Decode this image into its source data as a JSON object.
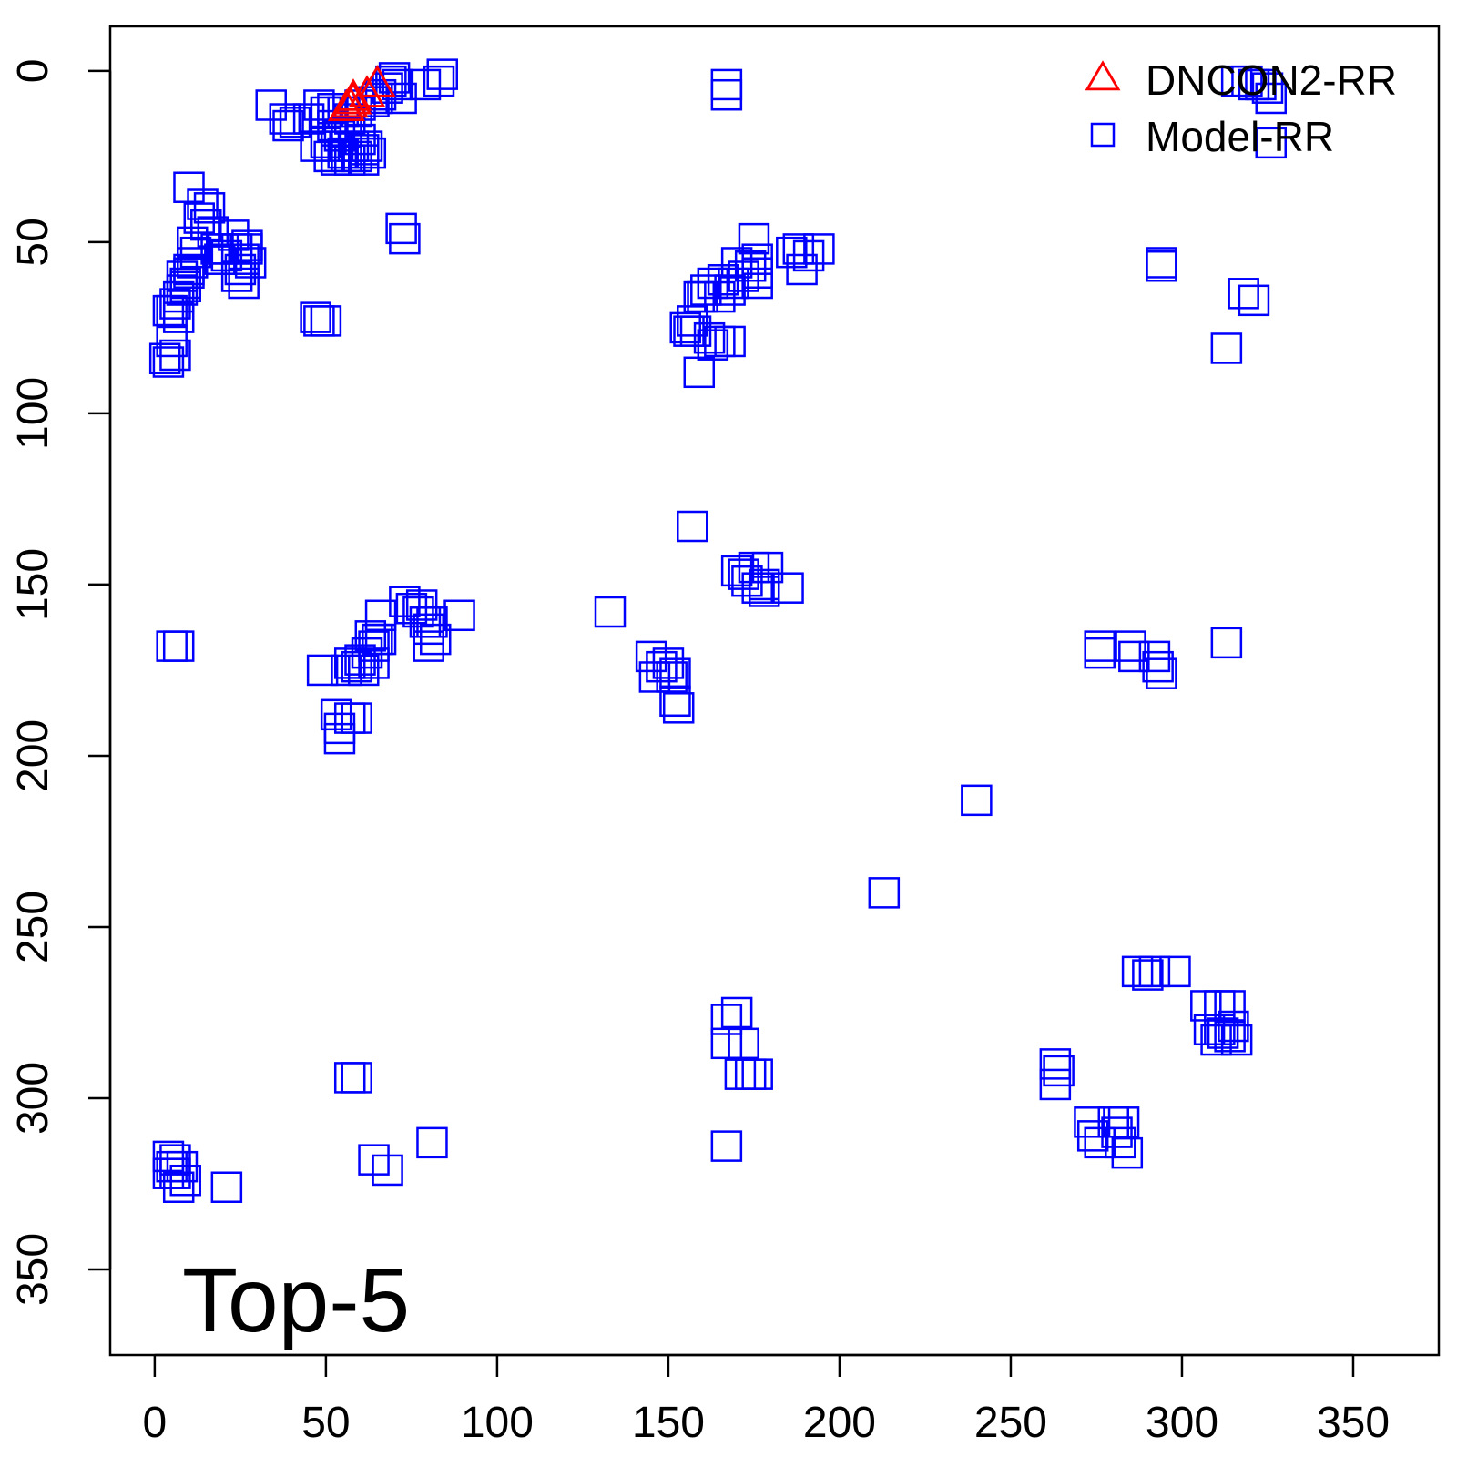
{
  "chart_data": {
    "type": "scatter",
    "title": "",
    "xlabel": "",
    "ylabel": "",
    "annotation": "Top-5",
    "xlim": [
      -13,
      375
    ],
    "ylim": [
      -13,
      375
    ],
    "y_inverted": true,
    "x_ticks": [
      "0",
      "50",
      "100",
      "150",
      "200",
      "250",
      "300",
      "350"
    ],
    "y_ticks": [
      "0",
      "50",
      "100",
      "150",
      "200",
      "250",
      "300",
      "350"
    ],
    "legend_position": "top-right",
    "colors": {
      "DNCON2-RR": "#ff0000",
      "Model-RR": "#0000ff"
    },
    "series": [
      {
        "name": "DNCON2-RR",
        "marker": "triangle",
        "points": [
          [
            56,
            11
          ],
          [
            57,
            10
          ],
          [
            58,
            9
          ],
          [
            58,
            8
          ],
          [
            62,
            7
          ],
          [
            65,
            4
          ]
        ]
      },
      {
        "name": "Model-RR",
        "marker": "square",
        "points": [
          [
            34,
            10
          ],
          [
            38,
            14
          ],
          [
            39,
            16
          ],
          [
            41,
            15
          ],
          [
            45,
            14
          ],
          [
            47,
            22
          ],
          [
            48,
            10
          ],
          [
            50,
            12
          ],
          [
            50,
            21
          ],
          [
            51,
            25
          ],
          [
            52,
            16
          ],
          [
            52,
            11
          ],
          [
            53,
            22
          ],
          [
            53,
            26
          ],
          [
            54,
            19
          ],
          [
            55,
            12
          ],
          [
            55,
            24
          ],
          [
            56,
            18
          ],
          [
            56,
            25
          ],
          [
            57,
            14
          ],
          [
            57,
            26
          ],
          [
            58,
            22
          ],
          [
            59,
            12
          ],
          [
            59,
            25
          ],
          [
            60,
            10
          ],
          [
            60,
            20
          ],
          [
            61,
            23
          ],
          [
            61,
            26
          ],
          [
            62,
            22
          ],
          [
            63,
            24
          ],
          [
            64,
            9
          ],
          [
            65,
            8
          ],
          [
            66,
            7
          ],
          [
            68,
            5
          ],
          [
            69,
            3
          ],
          [
            70,
            2
          ],
          [
            71,
            4
          ],
          [
            72,
            8
          ],
          [
            79,
            4
          ],
          [
            83,
            3
          ],
          [
            84,
            1
          ],
          [
            167,
            4
          ],
          [
            167,
            7
          ],
          [
            316,
            3
          ],
          [
            319,
            3
          ],
          [
            321,
            4
          ],
          [
            323,
            4
          ],
          [
            325,
            5
          ],
          [
            326,
            8
          ],
          [
            326,
            21
          ],
          [
            10,
            34
          ],
          [
            11,
            50
          ],
          [
            13,
            43
          ],
          [
            14,
            39
          ],
          [
            15,
            45
          ],
          [
            16,
            40
          ],
          [
            17,
            47
          ],
          [
            18,
            52
          ],
          [
            19,
            55
          ],
          [
            20,
            52
          ],
          [
            21,
            54
          ],
          [
            23,
            48
          ],
          [
            24,
            52
          ],
          [
            25,
            58
          ],
          [
            26,
            55
          ],
          [
            27,
            51
          ],
          [
            28,
            56
          ],
          [
            24,
            60
          ],
          [
            26,
            62
          ],
          [
            27,
            52
          ],
          [
            12,
            53
          ],
          [
            11,
            56
          ],
          [
            10,
            59
          ],
          [
            9,
            62
          ],
          [
            8,
            64
          ],
          [
            7,
            66
          ],
          [
            6,
            68
          ],
          [
            5,
            70
          ],
          [
            4,
            70
          ],
          [
            7,
            72
          ],
          [
            5,
            79
          ],
          [
            3,
            84
          ],
          [
            4,
            85
          ],
          [
            6,
            83
          ],
          [
            8,
            60
          ],
          [
            10,
            58
          ],
          [
            9,
            63
          ],
          [
            72,
            46
          ],
          [
            73,
            49
          ],
          [
            47,
            72
          ],
          [
            48,
            73
          ],
          [
            50,
            73
          ],
          [
            175,
            49
          ],
          [
            176,
            55
          ],
          [
            176,
            59
          ],
          [
            176,
            62
          ],
          [
            174,
            57
          ],
          [
            172,
            60
          ],
          [
            170,
            56
          ],
          [
            169,
            62
          ],
          [
            168,
            64
          ],
          [
            166,
            61
          ],
          [
            165,
            66
          ],
          [
            163,
            62
          ],
          [
            161,
            64
          ],
          [
            160,
            66
          ],
          [
            159,
            66
          ],
          [
            158,
            76
          ],
          [
            157,
            73
          ],
          [
            156,
            76
          ],
          [
            155,
            75
          ],
          [
            162,
            78
          ],
          [
            163,
            80
          ],
          [
            165,
            79
          ],
          [
            168,
            79
          ],
          [
            159,
            88
          ],
          [
            186,
            53
          ],
          [
            188,
            52
          ],
          [
            189,
            58
          ],
          [
            191,
            54
          ],
          [
            194,
            52
          ],
          [
            294,
            56
          ],
          [
            294,
            57
          ],
          [
            318,
            65
          ],
          [
            321,
            67
          ],
          [
            313,
            81
          ],
          [
            157,
            133
          ],
          [
            133,
            158
          ],
          [
            170,
            146
          ],
          [
            172,
            147
          ],
          [
            173,
            149
          ],
          [
            175,
            145
          ],
          [
            176,
            151
          ],
          [
            178,
            150
          ],
          [
            179,
            145
          ],
          [
            178,
            152
          ],
          [
            185,
            151
          ],
          [
            145,
            171
          ],
          [
            146,
            177
          ],
          [
            148,
            174
          ],
          [
            150,
            173
          ],
          [
            151,
            177
          ],
          [
            152,
            176
          ],
          [
            152,
            184
          ],
          [
            153,
            186
          ],
          [
            73,
            155
          ],
          [
            75,
            157
          ],
          [
            77,
            158
          ],
          [
            78,
            156
          ],
          [
            79,
            161
          ],
          [
            80,
            163
          ],
          [
            80,
            168
          ],
          [
            81,
            161
          ],
          [
            82,
            166
          ],
          [
            89,
            159
          ],
          [
            66,
            159
          ],
          [
            65,
            166
          ],
          [
            64,
            168
          ],
          [
            63,
            165
          ],
          [
            62,
            170
          ],
          [
            60,
            172
          ],
          [
            59,
            174
          ],
          [
            57,
            173
          ],
          [
            56,
            175
          ],
          [
            61,
            175
          ],
          [
            64,
            173
          ],
          [
            66,
            166
          ],
          [
            49,
            175
          ],
          [
            53,
            188
          ],
          [
            54,
            192
          ],
          [
            54,
            195
          ],
          [
            57,
            189
          ],
          [
            59,
            189
          ],
          [
            5,
            168
          ],
          [
            7,
            168
          ],
          [
            276,
            168
          ],
          [
            276,
            170
          ],
          [
            285,
            168
          ],
          [
            286,
            171
          ],
          [
            292,
            171
          ],
          [
            293,
            174
          ],
          [
            294,
            176
          ],
          [
            313,
            167
          ],
          [
            240,
            213
          ],
          [
            213,
            240
          ],
          [
            287,
            263
          ],
          [
            290,
            264
          ],
          [
            292,
            263
          ],
          [
            298,
            263
          ],
          [
            307,
            273
          ],
          [
            311,
            273
          ],
          [
            314,
            273
          ],
          [
            308,
            280
          ],
          [
            310,
            283
          ],
          [
            312,
            281
          ],
          [
            314,
            282
          ],
          [
            315,
            279
          ],
          [
            316,
            283
          ],
          [
            311,
            280
          ],
          [
            167,
            277
          ],
          [
            170,
            275
          ],
          [
            167,
            284
          ],
          [
            172,
            284
          ],
          [
            171,
            293
          ],
          [
            174,
            293
          ],
          [
            176,
            293
          ],
          [
            167,
            314
          ],
          [
            263,
            290
          ],
          [
            264,
            292
          ],
          [
            263,
            296
          ],
          [
            273,
            307
          ],
          [
            274,
            311
          ],
          [
            276,
            313
          ],
          [
            280,
            307
          ],
          [
            282,
            313
          ],
          [
            283,
            307
          ],
          [
            284,
            316
          ],
          [
            281,
            310
          ],
          [
            57,
            294
          ],
          [
            59,
            294
          ],
          [
            64,
            318
          ],
          [
            68,
            321
          ],
          [
            81,
            313
          ],
          [
            4,
            317
          ],
          [
            5,
            320
          ],
          [
            6,
            322
          ],
          [
            8,
            320
          ],
          [
            9,
            324
          ],
          [
            7,
            326
          ],
          [
            4,
            322
          ],
          [
            6,
            318
          ],
          [
            21,
            326
          ]
        ]
      }
    ]
  }
}
